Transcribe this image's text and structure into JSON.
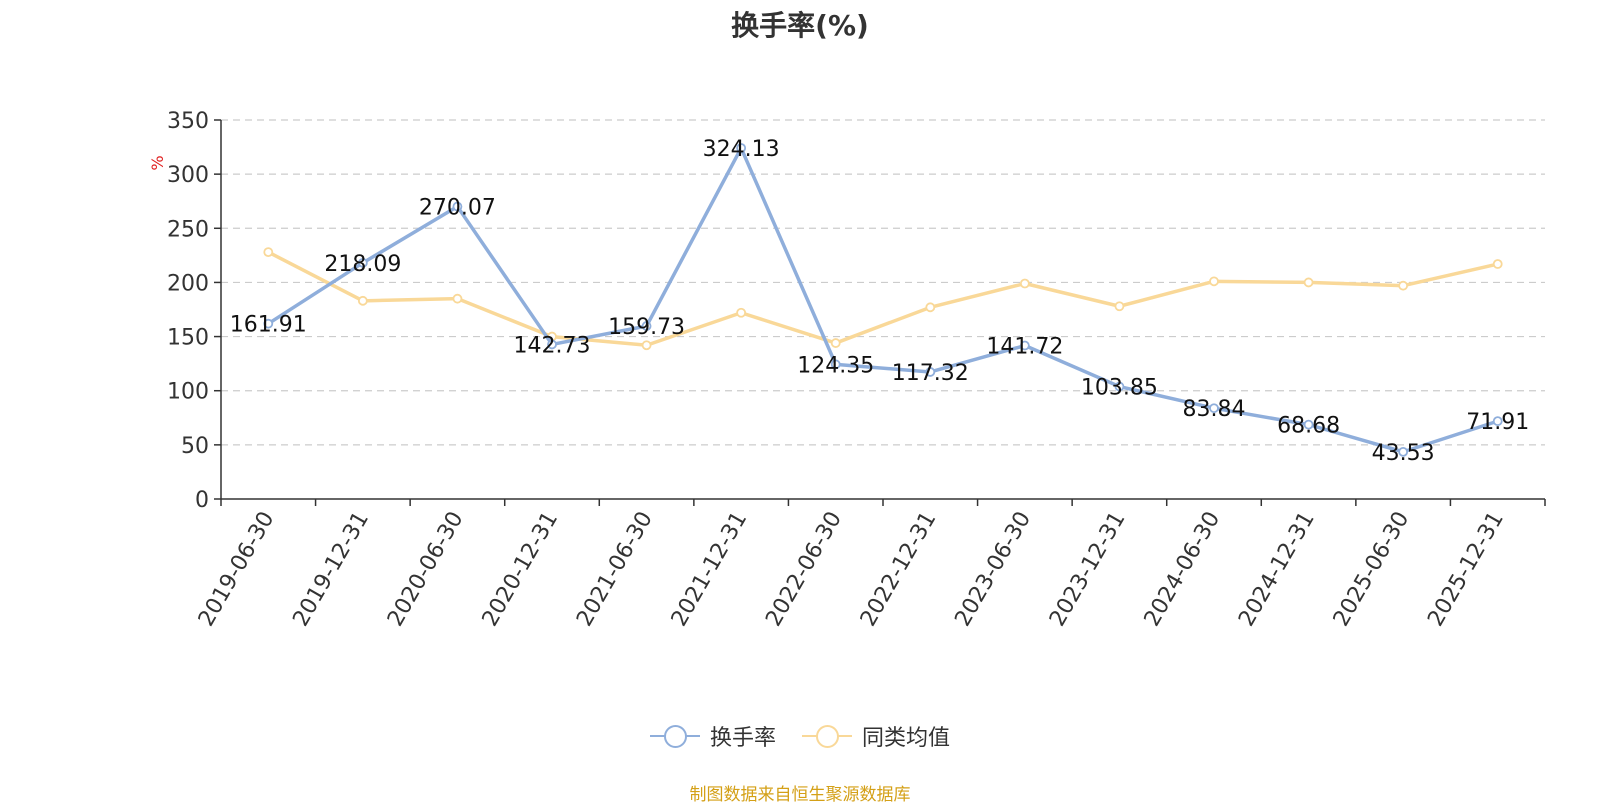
{
  "chart_data": {
    "type": "line",
    "title": "换手率(%)",
    "ylabel": "%",
    "ylim": [
      0,
      350
    ],
    "yticks": [
      "0",
      "50",
      "100",
      "150",
      "200",
      "250",
      "300",
      "350"
    ],
    "grid": true,
    "legend_position": "bottom",
    "categories": [
      "2019-06-30",
      "2019-12-31",
      "2020-06-30",
      "2020-12-31",
      "2021-06-30",
      "2021-12-31",
      "2022-06-30",
      "2022-12-31",
      "2023-06-30",
      "2023-12-31",
      "2024-06-30",
      "2024-12-31",
      "2025-06-30",
      "2025-12-31"
    ],
    "series": [
      {
        "name": "换手率",
        "color": "#8faedb",
        "values": [
          161.91,
          218.09,
          270.07,
          142.73,
          159.73,
          324.13,
          124.35,
          117.32,
          141.72,
          103.85,
          83.84,
          68.68,
          43.53,
          71.91
        ],
        "labels": [
          "161.91",
          "218.09",
          "270.07",
          "142.73",
          "159.73",
          "324.13",
          "124.35",
          "117.32",
          "141.72",
          "103.85",
          "83.84",
          "68.68",
          "43.53",
          "71.91"
        ]
      },
      {
        "name": "同类均值",
        "color": "#f9d898",
        "values": [
          228,
          183,
          185,
          150,
          142,
          172,
          144,
          177,
          199,
          178,
          201,
          200,
          197,
          217
        ]
      }
    ]
  },
  "source_note": "制图数据来自恒生聚源数据库"
}
